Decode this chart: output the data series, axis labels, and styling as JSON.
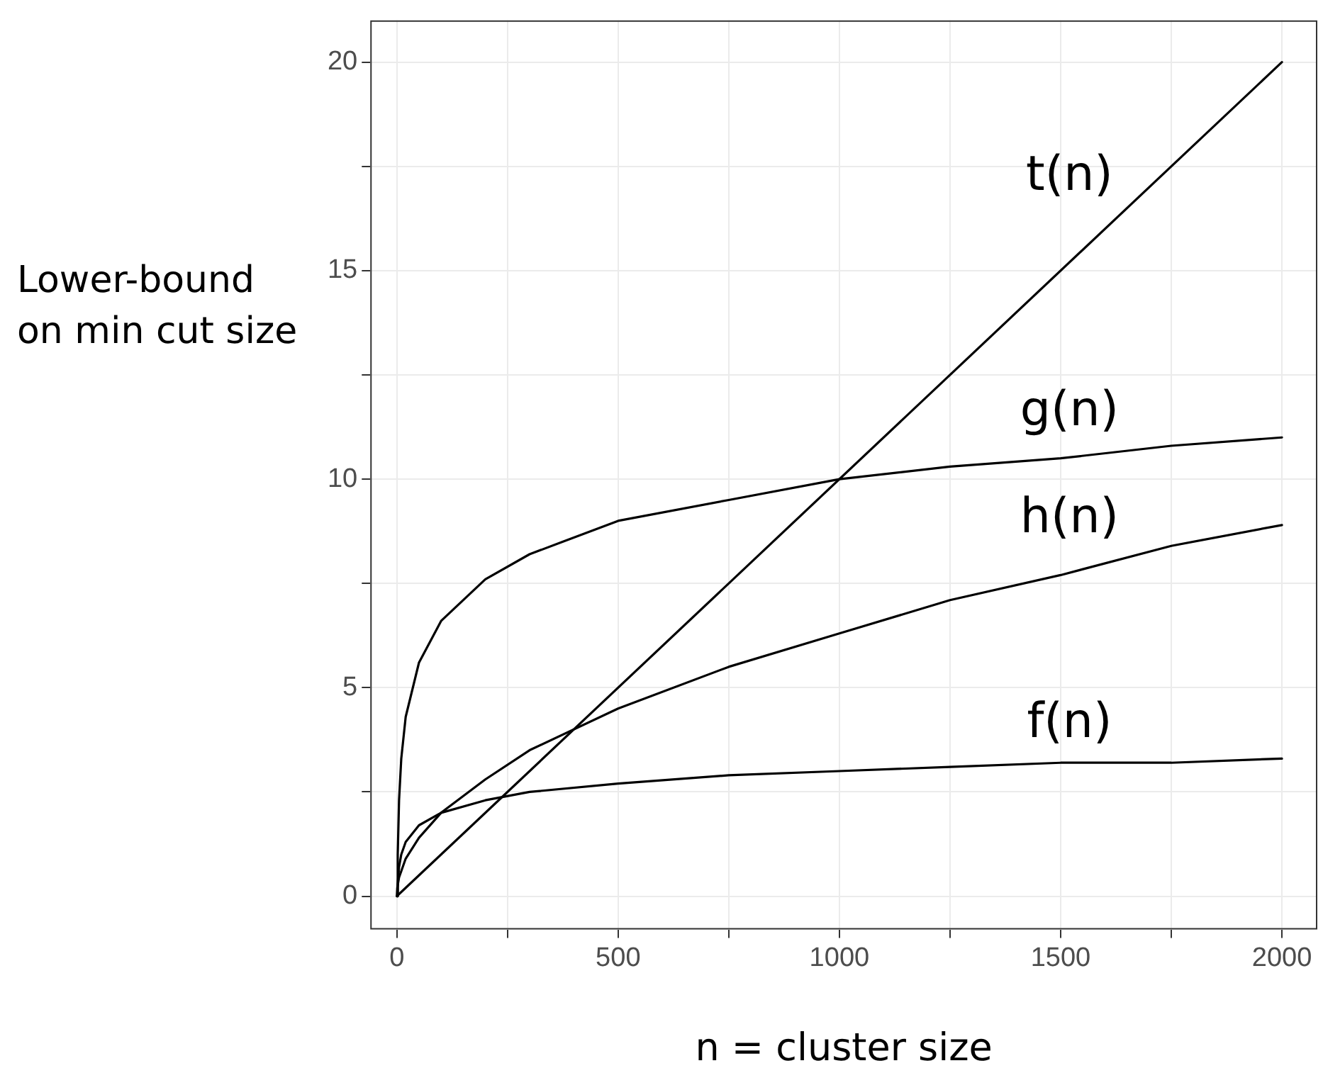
{
  "chart_data": {
    "type": "line",
    "xlabel": "n = cluster size",
    "ylabel": "Lower-bound on min cut size",
    "xlim": [
      -60,
      2080
    ],
    "ylim": [
      -0.8,
      21
    ],
    "xticks": [
      0,
      {
        "value": 250,
        "label": null
      },
      500,
      {
        "value": 750,
        "label": null
      },
      1000,
      {
        "value": 1250,
        "label": null
      },
      1500,
      {
        "value": 1750,
        "label": null
      },
      2000
    ],
    "yticks": [
      0,
      {
        "value": 2.5,
        "label": null
      },
      5,
      {
        "value": 7.5,
        "label": null
      },
      10,
      {
        "value": 12.5,
        "label": null
      },
      15,
      {
        "value": 17.5,
        "label": null
      },
      20
    ],
    "grid": true,
    "legend": false,
    "marker": "none",
    "line_style": "solid",
    "series": [
      {
        "name": "t(n)",
        "color": "#000000",
        "x": [
          0,
          2000
        ],
        "values": [
          0,
          20
        ]
      },
      {
        "name": "g(n)",
        "color": "#000000",
        "x": [
          1,
          2,
          5,
          10,
          20,
          50,
          100,
          200,
          300,
          500,
          750,
          1000,
          1250,
          1500,
          1750,
          2000
        ],
        "values": [
          0,
          1,
          2.3,
          3.3,
          4.3,
          5.6,
          6.6,
          7.6,
          8.2,
          9,
          9.5,
          10,
          10.3,
          10.5,
          10.8,
          11
        ]
      },
      {
        "name": "h(n)",
        "color": "#000000",
        "x": [
          0,
          1,
          5,
          10,
          20,
          50,
          100,
          200,
          300,
          500,
          750,
          1000,
          1250,
          1500,
          1750,
          2000
        ],
        "values": [
          0,
          0.2,
          0.45,
          0.6,
          0.9,
          1.4,
          2,
          2.8,
          3.5,
          4.5,
          5.5,
          6.3,
          7.1,
          7.7,
          8.4,
          8.9
        ]
      },
      {
        "name": "f(n)",
        "color": "#000000",
        "x": [
          1,
          2,
          5,
          10,
          20,
          50,
          100,
          200,
          300,
          500,
          750,
          1000,
          1250,
          1500,
          1750,
          2000
        ],
        "values": [
          0,
          0.3,
          0.7,
          1,
          1.3,
          1.7,
          2,
          2.3,
          2.5,
          2.7,
          2.9,
          3,
          3.1,
          3.2,
          3.2,
          3.3
        ]
      }
    ]
  }
}
